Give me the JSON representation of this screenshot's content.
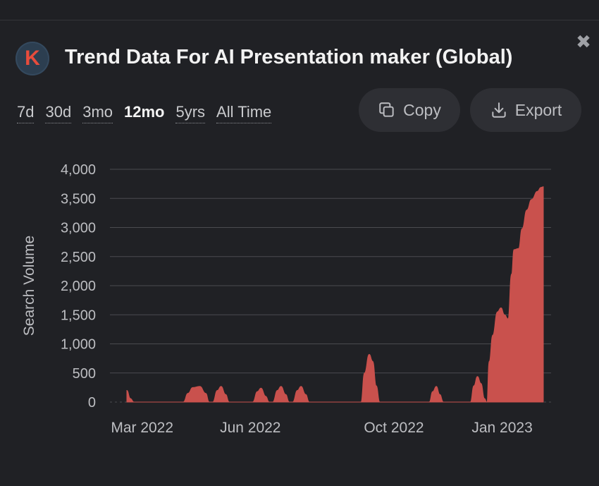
{
  "header": {
    "logo_letter": "K",
    "title": "Trend Data For AI Presentation maker (Global)",
    "close_glyph": "✖"
  },
  "ranges": [
    {
      "label": "7d",
      "active": false
    },
    {
      "label": "30d",
      "active": false
    },
    {
      "label": "3mo",
      "active": false
    },
    {
      "label": "12mo",
      "active": true
    },
    {
      "label": "5yrs",
      "active": false
    },
    {
      "label": "All Time",
      "active": false
    }
  ],
  "actions": {
    "copy_label": "Copy",
    "copy_icon": "copy-icon",
    "export_label": "Export",
    "export_icon": "download-icon"
  },
  "colors": {
    "accent": "#c9514d",
    "logo_bg": "#2c3e50",
    "logo_letter": "#e74c3c",
    "grid": "#4a4b50"
  },
  "chart_data": {
    "type": "area",
    "title": "",
    "xlabel": "",
    "ylabel": "Search Volume",
    "ylim": [
      0,
      4000
    ],
    "yticks": [
      0,
      500,
      1000,
      1500,
      2000,
      2500,
      3000,
      3500,
      4000
    ],
    "ytick_labels": [
      "0",
      "500",
      "1,000",
      "1,500",
      "2,000",
      "2,500",
      "3,000",
      "3,500",
      "4,000"
    ],
    "x_range": [
      "2022-02-16",
      "2023-02-08"
    ],
    "xtick_labels": [
      {
        "date": "2022-03-01",
        "label": "Mar 2022"
      },
      {
        "date": "2022-06-01",
        "label": "Jun 2022"
      },
      {
        "date": "2022-10-01",
        "label": "Oct 2022"
      },
      {
        "date": "2023-01-01",
        "label": "Jan 2023"
      }
    ],
    "grid": true,
    "legend": "none",
    "series": [
      {
        "name": "",
        "points": [
          [
            "2022-02-16",
            200
          ],
          [
            "2022-02-19",
            60
          ],
          [
            "2022-02-22",
            0
          ],
          [
            "2022-04-05",
            0
          ],
          [
            "2022-04-09",
            150
          ],
          [
            "2022-04-13",
            250
          ],
          [
            "2022-04-19",
            270
          ],
          [
            "2022-04-24",
            150
          ],
          [
            "2022-04-27",
            0
          ],
          [
            "2022-04-30",
            0
          ],
          [
            "2022-05-04",
            200
          ],
          [
            "2022-05-07",
            270
          ],
          [
            "2022-05-11",
            130
          ],
          [
            "2022-05-14",
            0
          ],
          [
            "2022-06-03",
            0
          ],
          [
            "2022-06-07",
            180
          ],
          [
            "2022-06-10",
            240
          ],
          [
            "2022-06-14",
            100
          ],
          [
            "2022-06-17",
            0
          ],
          [
            "2022-06-20",
            0
          ],
          [
            "2022-06-24",
            200
          ],
          [
            "2022-06-27",
            270
          ],
          [
            "2022-07-01",
            130
          ],
          [
            "2022-07-04",
            0
          ],
          [
            "2022-07-07",
            0
          ],
          [
            "2022-07-11",
            200
          ],
          [
            "2022-07-14",
            270
          ],
          [
            "2022-07-18",
            130
          ],
          [
            "2022-07-21",
            0
          ],
          [
            "2022-09-03",
            0
          ],
          [
            "2022-09-06",
            500
          ],
          [
            "2022-09-10",
            820
          ],
          [
            "2022-09-13",
            700
          ],
          [
            "2022-09-16",
            280
          ],
          [
            "2022-09-19",
            0
          ],
          [
            "2022-10-31",
            0
          ],
          [
            "2022-11-03",
            180
          ],
          [
            "2022-11-06",
            270
          ],
          [
            "2022-11-09",
            130
          ],
          [
            "2022-11-12",
            0
          ],
          [
            "2022-12-05",
            0
          ],
          [
            "2022-12-08",
            280
          ],
          [
            "2022-12-11",
            440
          ],
          [
            "2022-12-14",
            320
          ],
          [
            "2022-12-17",
            60
          ],
          [
            "2022-12-19",
            0
          ],
          [
            "2022-12-21",
            700
          ],
          [
            "2022-12-24",
            1150
          ],
          [
            "2022-12-28",
            1550
          ],
          [
            "2022-12-31",
            1620
          ],
          [
            "2023-01-03",
            1500
          ],
          [
            "2023-01-06",
            1430
          ],
          [
            "2023-01-09",
            2200
          ],
          [
            "2023-01-11",
            2620
          ],
          [
            "2023-01-15",
            2640
          ],
          [
            "2023-01-18",
            2980
          ],
          [
            "2023-01-22",
            3300
          ],
          [
            "2023-01-26",
            3480
          ],
          [
            "2023-01-31",
            3620
          ],
          [
            "2023-02-03",
            3690
          ],
          [
            "2023-02-05",
            3700
          ]
        ]
      }
    ]
  }
}
